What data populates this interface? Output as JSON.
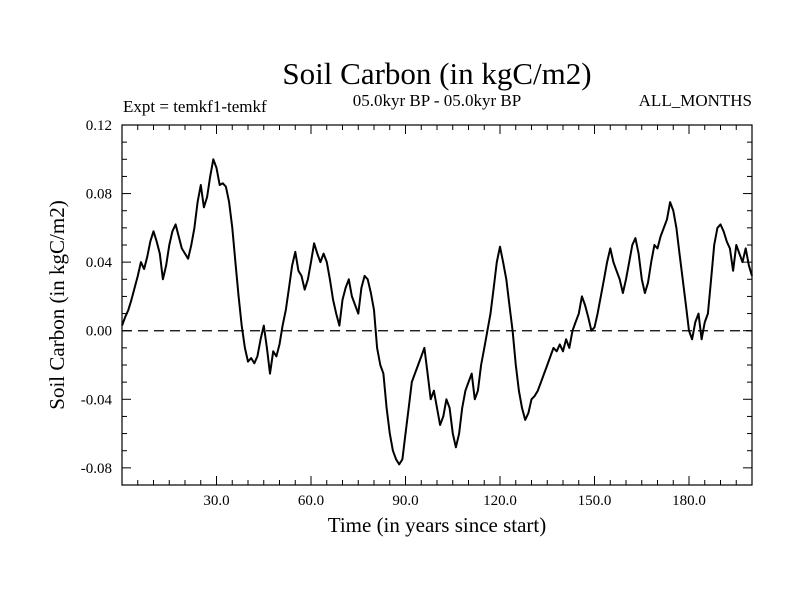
{
  "chart_data": {
    "type": "line",
    "title": "Soil Carbon (in kgC/m2)",
    "subtitle_left": "Expt = temkf1-temkf",
    "subtitle_center": "05.0kyr BP - 05.0kyr BP",
    "subtitle_right": "ALL_MONTHS",
    "xlabel": "Time (in years since start)",
    "ylabel": "Soil Carbon (in kgC/m2)",
    "xlim": [
      0,
      200
    ],
    "ylim": [
      -0.09,
      0.12
    ],
    "x_ticks": [
      30,
      60,
      90,
      120,
      150,
      180
    ],
    "x_tick_labels": [
      "30.0",
      "60.0",
      "90.0",
      "120.0",
      "150.0",
      "180.0"
    ],
    "y_ticks": [
      -0.08,
      -0.04,
      0.0,
      0.04,
      0.08,
      0.12
    ],
    "y_tick_labels": [
      "-0.08",
      "-0.04",
      "0.00",
      "0.04",
      "0.08",
      "0.12"
    ],
    "reference_line": {
      "y": 0.0,
      "style": "dashed"
    },
    "line_color": "#000000",
    "series": [
      {
        "name": "Soil Carbon",
        "points": [
          [
            0,
            0.003
          ],
          [
            1,
            0.008
          ],
          [
            2,
            0.012
          ],
          [
            3,
            0.018
          ],
          [
            4,
            0.025
          ],
          [
            5,
            0.032
          ],
          [
            6,
            0.04
          ],
          [
            7,
            0.036
          ],
          [
            8,
            0.043
          ],
          [
            9,
            0.052
          ],
          [
            10,
            0.058
          ],
          [
            11,
            0.052
          ],
          [
            12,
            0.045
          ],
          [
            13,
            0.03
          ],
          [
            14,
            0.038
          ],
          [
            15,
            0.05
          ],
          [
            16,
            0.058
          ],
          [
            17,
            0.062
          ],
          [
            18,
            0.055
          ],
          [
            19,
            0.048
          ],
          [
            20,
            0.045
          ],
          [
            21,
            0.042
          ],
          [
            22,
            0.05
          ],
          [
            23,
            0.06
          ],
          [
            24,
            0.075
          ],
          [
            25,
            0.085
          ],
          [
            26,
            0.072
          ],
          [
            27,
            0.078
          ],
          [
            28,
            0.09
          ],
          [
            29,
            0.1
          ],
          [
            30,
            0.095
          ],
          [
            31,
            0.085
          ],
          [
            32,
            0.086
          ],
          [
            33,
            0.084
          ],
          [
            34,
            0.075
          ],
          [
            35,
            0.06
          ],
          [
            36,
            0.04
          ],
          [
            37,
            0.02
          ],
          [
            38,
            0.003
          ],
          [
            39,
            -0.01
          ],
          [
            40,
            -0.018
          ],
          [
            41,
            -0.016
          ],
          [
            42,
            -0.019
          ],
          [
            43,
            -0.015
          ],
          [
            44,
            -0.005
          ],
          [
            45,
            0.003
          ],
          [
            46,
            -0.01
          ],
          [
            47,
            -0.025
          ],
          [
            48,
            -0.012
          ],
          [
            49,
            -0.015
          ],
          [
            50,
            -0.008
          ],
          [
            51,
            0.003
          ],
          [
            52,
            0.012
          ],
          [
            53,
            0.025
          ],
          [
            54,
            0.038
          ],
          [
            55,
            0.046
          ],
          [
            56,
            0.035
          ],
          [
            57,
            0.032
          ],
          [
            58,
            0.024
          ],
          [
            59,
            0.03
          ],
          [
            60,
            0.04
          ],
          [
            61,
            0.051
          ],
          [
            62,
            0.045
          ],
          [
            63,
            0.04
          ],
          [
            64,
            0.045
          ],
          [
            65,
            0.04
          ],
          [
            66,
            0.03
          ],
          [
            67,
            0.018
          ],
          [
            68,
            0.01
          ],
          [
            69,
            0.003
          ],
          [
            70,
            0.018
          ],
          [
            71,
            0.025
          ],
          [
            72,
            0.03
          ],
          [
            73,
            0.02
          ],
          [
            74,
            0.015
          ],
          [
            75,
            0.01
          ],
          [
            76,
            0.025
          ],
          [
            77,
            0.032
          ],
          [
            78,
            0.03
          ],
          [
            79,
            0.022
          ],
          [
            80,
            0.012
          ],
          [
            81,
            -0.01
          ],
          [
            82,
            -0.02
          ],
          [
            83,
            -0.025
          ],
          [
            84,
            -0.045
          ],
          [
            85,
            -0.06
          ],
          [
            86,
            -0.07
          ],
          [
            87,
            -0.075
          ],
          [
            88,
            -0.078
          ],
          [
            89,
            -0.075
          ],
          [
            90,
            -0.06
          ],
          [
            91,
            -0.045
          ],
          [
            92,
            -0.03
          ],
          [
            93,
            -0.025
          ],
          [
            94,
            -0.02
          ],
          [
            95,
            -0.015
          ],
          [
            96,
            -0.01
          ],
          [
            97,
            -0.025
          ],
          [
            98,
            -0.04
          ],
          [
            99,
            -0.035
          ],
          [
            100,
            -0.045
          ],
          [
            101,
            -0.055
          ],
          [
            102,
            -0.05
          ],
          [
            103,
            -0.04
          ],
          [
            104,
            -0.045
          ],
          [
            105,
            -0.06
          ],
          [
            106,
            -0.068
          ],
          [
            107,
            -0.06
          ],
          [
            108,
            -0.045
          ],
          [
            109,
            -0.035
          ],
          [
            110,
            -0.03
          ],
          [
            111,
            -0.025
          ],
          [
            112,
            -0.04
          ],
          [
            113,
            -0.035
          ],
          [
            114,
            -0.02
          ],
          [
            115,
            -0.01
          ],
          [
            116,
            0.0
          ],
          [
            117,
            0.01
          ],
          [
            118,
            0.025
          ],
          [
            119,
            0.04
          ],
          [
            120,
            0.049
          ],
          [
            121,
            0.04
          ],
          [
            122,
            0.03
          ],
          [
            123,
            0.015
          ],
          [
            124,
            0.0
          ],
          [
            125,
            -0.02
          ],
          [
            126,
            -0.035
          ],
          [
            127,
            -0.045
          ],
          [
            128,
            -0.052
          ],
          [
            129,
            -0.048
          ],
          [
            130,
            -0.04
          ],
          [
            131,
            -0.038
          ],
          [
            132,
            -0.035
          ],
          [
            133,
            -0.03
          ],
          [
            134,
            -0.025
          ],
          [
            135,
            -0.02
          ],
          [
            136,
            -0.015
          ],
          [
            137,
            -0.01
          ],
          [
            138,
            -0.012
          ],
          [
            139,
            -0.008
          ],
          [
            140,
            -0.012
          ],
          [
            141,
            -0.005
          ],
          [
            142,
            -0.01
          ],
          [
            143,
            0.0
          ],
          [
            144,
            0.005
          ],
          [
            145,
            0.01
          ],
          [
            146,
            0.02
          ],
          [
            147,
            0.015
          ],
          [
            148,
            0.008
          ],
          [
            149,
            0.0
          ],
          [
            150,
            0.002
          ],
          [
            151,
            0.01
          ],
          [
            152,
            0.02
          ],
          [
            153,
            0.03
          ],
          [
            154,
            0.04
          ],
          [
            155,
            0.048
          ],
          [
            156,
            0.04
          ],
          [
            157,
            0.035
          ],
          [
            158,
            0.03
          ],
          [
            159,
            0.022
          ],
          [
            160,
            0.03
          ],
          [
            161,
            0.04
          ],
          [
            162,
            0.05
          ],
          [
            163,
            0.054
          ],
          [
            164,
            0.045
          ],
          [
            165,
            0.03
          ],
          [
            166,
            0.022
          ],
          [
            167,
            0.028
          ],
          [
            168,
            0.04
          ],
          [
            169,
            0.05
          ],
          [
            170,
            0.048
          ],
          [
            171,
            0.055
          ],
          [
            172,
            0.06
          ],
          [
            173,
            0.065
          ],
          [
            174,
            0.075
          ],
          [
            175,
            0.07
          ],
          [
            176,
            0.06
          ],
          [
            177,
            0.045
          ],
          [
            178,
            0.03
          ],
          [
            179,
            0.015
          ],
          [
            180,
            0.0
          ],
          [
            181,
            -0.005
          ],
          [
            182,
            0.005
          ],
          [
            183,
            0.01
          ],
          [
            184,
            -0.005
          ],
          [
            185,
            0.005
          ],
          [
            186,
            0.01
          ],
          [
            187,
            0.03
          ],
          [
            188,
            0.05
          ],
          [
            189,
            0.06
          ],
          [
            190,
            0.062
          ],
          [
            191,
            0.058
          ],
          [
            192,
            0.052
          ],
          [
            193,
            0.048
          ],
          [
            194,
            0.035
          ],
          [
            195,
            0.05
          ],
          [
            196,
            0.045
          ],
          [
            197,
            0.04
          ],
          [
            198,
            0.048
          ],
          [
            199,
            0.038
          ],
          [
            200,
            0.032
          ]
        ]
      }
    ]
  }
}
